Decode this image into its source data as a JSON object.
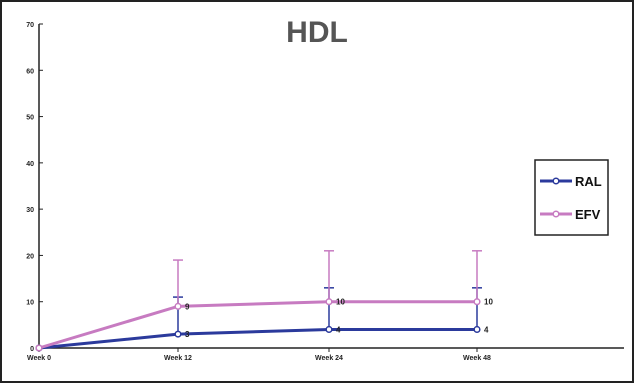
{
  "chart_data": {
    "type": "line",
    "title": "HDL",
    "categories": [
      "Week 0",
      "Week 12",
      "Week 24",
      "Week 48"
    ],
    "ylim": [
      0,
      70
    ],
    "yticks": [
      0,
      10,
      20,
      30,
      40,
      50,
      60,
      70
    ],
    "grid": false,
    "legend_position": "right",
    "series": [
      {
        "name": "RAL",
        "color": "#2b3a9c",
        "values": [
          0,
          3,
          4,
          4
        ],
        "error_upper": [
          0,
          11,
          13,
          13
        ],
        "labels": [
          "",
          "3",
          "4",
          "4"
        ]
      },
      {
        "name": "EFV",
        "color": "#c77bc1",
        "values": [
          0,
          9,
          10,
          10
        ],
        "error_upper": [
          0,
          19,
          21,
          21
        ],
        "labels": [
          "",
          "9",
          "10",
          "10"
        ]
      }
    ]
  }
}
